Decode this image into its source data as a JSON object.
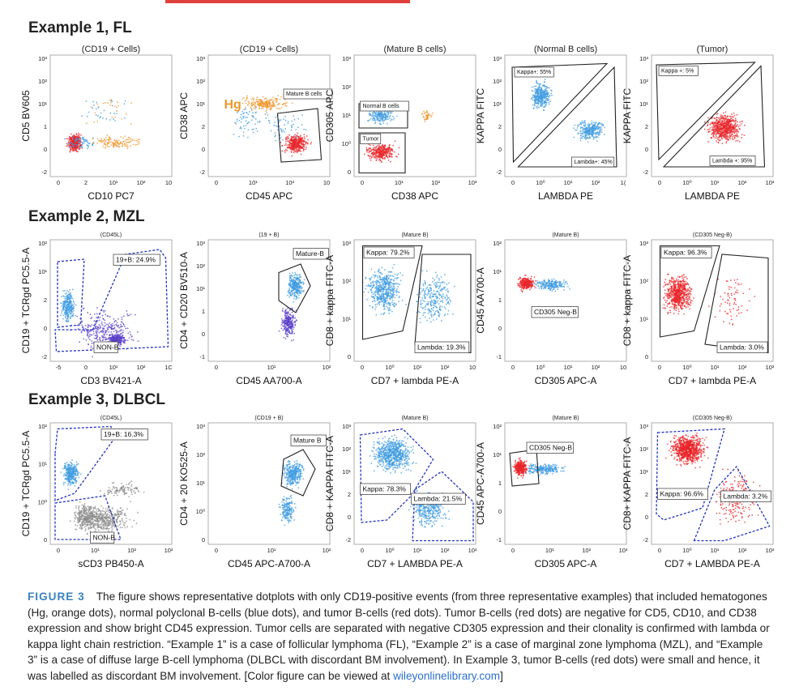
{
  "figure": {
    "examples": [
      {
        "title": "Example 1, FL"
      },
      {
        "title": "Example 2, MZL"
      },
      {
        "title": "Example 3, DLBCL"
      }
    ],
    "caption": {
      "label": "FIGURE 3",
      "text": "The figure shows representative dotplots with only CD19-positive events (from three representative examples) that included hematogones (Hg, orange dots), normal polyclonal B-cells (blue dots), and tumor B-cells (red dots). Tumor B-cells (red dots) are negative for CD5, CD10, and CD38 expression and show bright CD45 expression. Tumor cells are separated with negative CD305 expression and their clonality is confirmed with lambda or kappa light chain restriction. “Example 1” is a case of follicular lymphoma (FL), “Example 2” is a case of marginal zone lymphoma (MZL), and “Example 3” is a case of diffuse large B-cell lymphoma (DLBCL with discordant BM involvement). In Example 3, tumor B-cells (red dots) were small and hence, it was labelled as discordant BM involvement. [Color figure can be viewed at ",
      "link": "wileyonlinelibrary.com",
      "end": "]"
    }
  },
  "colors": {
    "tumor": "#e8252a",
    "normal_b": "#3d9be0",
    "hematogones": "#f0962c",
    "gray": "#8a8a8a",
    "purple": "#5a3fc8",
    "gate_black": "#222222",
    "gate_blue": "#2233bb"
  },
  "chart_data": [
    {
      "type": "scatter",
      "example": 1,
      "title": "(CD19 + Cells)",
      "xlabel": "CD10 PC7",
      "ylabel": "CD5 BV605",
      "xticks": [
        "0",
        "2",
        "10¹",
        "10²",
        "10"
      ],
      "yticks": [
        "10³",
        "10²",
        "10¹",
        "1",
        "0",
        "-2"
      ],
      "series": [
        {
          "name": "tumor",
          "color": "red"
        },
        {
          "name": "normal B",
          "color": "blue"
        },
        {
          "name": "Hg",
          "color": "orange"
        }
      ],
      "gates": []
    },
    {
      "type": "scatter",
      "example": 1,
      "title": "(CD19 + Cells)",
      "xlabel": "CD45 APC",
      "ylabel": "CD38 APC",
      "xticks": [
        "0",
        "10¹",
        "10²",
        "10"
      ],
      "yticks": [
        "10³",
        "10²",
        "10¹",
        "2",
        "0",
        "-2"
      ],
      "annotations": [
        "Hg"
      ],
      "gates": [
        {
          "label": "Mature B cells"
        }
      ]
    },
    {
      "type": "scatter",
      "example": 1,
      "title": "(Mature B cells)",
      "xlabel": "CD38 APC",
      "ylabel": "CD305 APC",
      "xticks": [
        "0",
        "10¹",
        "10²",
        "10³"
      ],
      "yticks": [
        "10³",
        "10²",
        "10¹",
        "10⁰",
        "0"
      ],
      "gates": [
        {
          "label": "Normal B cells"
        },
        {
          "label": "Tumor"
        }
      ]
    },
    {
      "type": "scatter",
      "example": 1,
      "title": "(Normal B cells)",
      "xlabel": "LAMBDA PE",
      "ylabel": "KAPPA FITC",
      "xticks": [
        "0",
        "10⁰",
        "10¹",
        "10²",
        "1("
      ],
      "yticks": [
        "10³",
        "10²",
        "10¹",
        "2",
        "0",
        "-2"
      ],
      "gates": [
        {
          "label": "Kappa+: 55%",
          "value": 55
        },
        {
          "label": "Lambda+: 45%",
          "value": 45
        }
      ]
    },
    {
      "type": "scatter",
      "example": 1,
      "title": "(Tumor)",
      "xlabel": "LAMBDA PE",
      "ylabel": "KAPPA FITC",
      "xticks": [
        "0",
        "10⁰",
        "10¹",
        "10²",
        "10³"
      ],
      "yticks": [
        "10³",
        "10²",
        "10¹",
        "2",
        "0",
        "-2"
      ],
      "gates": [
        {
          "label": "Kappa +: 5%",
          "value": 5
        },
        {
          "label": "Lambda +: 95%",
          "value": 95
        }
      ]
    },
    {
      "type": "scatter",
      "example": 2,
      "title": "(CD45L)",
      "xlabel": "CD3 BV421-A",
      "ylabel": "CD19 + TCRgd PC5.5-A",
      "xticks": [
        "-5",
        "0",
        "10¹",
        "10²",
        "1C"
      ],
      "yticks": [
        "10²",
        "10¹",
        "2",
        "0",
        "-2"
      ],
      "gates": [
        {
          "label": "19+B: 24.9%",
          "value": 24.9
        },
        {
          "label": "NON-B"
        }
      ]
    },
    {
      "type": "scatter",
      "example": 2,
      "title": "(19 + B)",
      "xlabel": "CD45 AA700-A",
      "ylabel": "CD4 + CD20 BV510-A",
      "xticks": [
        "0",
        "10¹",
        "10²"
      ],
      "yticks": [
        "10³",
        "10²",
        "10¹",
        "1",
        "0",
        "-1"
      ],
      "gates": [
        {
          "label": "Mature-B"
        }
      ]
    },
    {
      "type": "scatter",
      "example": 2,
      "title": "(Mature B)",
      "xlabel": "CD7 + lambda PE-A",
      "ylabel": "CD8 + kappa FITC-A",
      "xticks": [
        "0",
        "10⁰",
        "10¹",
        "10²",
        "10"
      ],
      "yticks": [
        "10³",
        "10²",
        "10¹",
        "0"
      ],
      "gates": [
        {
          "label": "Kappa: 79.2%",
          "value": 79.2
        },
        {
          "label": "Lambda: 19.3%",
          "value": 19.3
        }
      ]
    },
    {
      "type": "scatter",
      "example": 2,
      "title": "(Mature B)",
      "xlabel": "CD305 APC-A",
      "ylabel": "CD45 AA700-A",
      "xticks": [
        "0",
        "10⁰",
        "10¹",
        "10²",
        "10"
      ],
      "yticks": [
        "10²",
        "10¹",
        "1",
        "0",
        "-1"
      ],
      "gates": [
        {
          "label": "CD305 Neg-B"
        }
      ]
    },
    {
      "type": "scatter",
      "example": 2,
      "title": "(CD305 Neg-B)",
      "xlabel": "CD7 + lambda PE-A",
      "ylabel": "CD8 + kappa FITC-A",
      "xticks": [
        "0",
        "10⁰",
        "10¹",
        "10²",
        "10³"
      ],
      "yticks": [
        "10³",
        "10²",
        "10¹",
        "0"
      ],
      "gates": [
        {
          "label": "Kappa: 96.3%",
          "value": 96.3
        },
        {
          "label": "Lambda: 3.0%",
          "value": 3.0
        }
      ]
    },
    {
      "type": "scatter",
      "example": 3,
      "title": "(CD45L)",
      "xlabel": "sCD3 PB450-A",
      "ylabel": "CD19 + TCRgd PC5.5-A",
      "xticks": [
        "0",
        "10¹",
        "10²",
        "10³"
      ],
      "yticks": [
        "10²",
        "10¹",
        "10⁰",
        "0"
      ],
      "gates": [
        {
          "label": "19+B: 16.3%",
          "value": 16.3
        },
        {
          "label": "NON-B"
        }
      ]
    },
    {
      "type": "scatter",
      "example": 3,
      "title": "(CD19 + B)",
      "xlabel": "CD45 APC-A700-A",
      "ylabel": "CD4 + 20 KO525-A",
      "xticks": [
        "0",
        "10¹",
        "10²"
      ],
      "yticks": [
        "10³",
        "10²",
        "10¹",
        "10⁰",
        "0"
      ],
      "gates": [
        {
          "label": "Mature B"
        }
      ]
    },
    {
      "type": "scatter",
      "example": 3,
      "title": "(Mature B)",
      "xlabel": "CD7 + LAMBDA PE-A",
      "ylabel": "CD8 + KAPPA FITC-A",
      "xticks": [
        "0",
        "10⁰",
        "10¹",
        "10²",
        "10³"
      ],
      "yticks": [
        "10³",
        "10²",
        "10¹",
        "2",
        "0",
        "-2"
      ],
      "gates": [
        {
          "label": "Kappa: 78.3%",
          "value": 78.3
        },
        {
          "label": "Lambda: 21.5%",
          "value": 21.5
        }
      ]
    },
    {
      "type": "scatter",
      "example": 3,
      "title": "(Mature B)",
      "xlabel": "CD305 APC-A",
      "ylabel": "CD45 APC-A700-A",
      "xticks": [
        "0",
        "10¹",
        "10²",
        "10³"
      ],
      "yticks": [
        "10²",
        "10¹",
        "1",
        "0",
        "-1"
      ],
      "gates": [
        {
          "label": "CD305 Neg-B"
        }
      ]
    },
    {
      "type": "scatter",
      "example": 3,
      "title": "(CD305 Neg-B)",
      "xlabel": "CD7 + LAMBDA PE-A",
      "ylabel": "CD8+ KAPPA FITC-A",
      "xticks": [
        "0",
        "10⁰",
        "10¹",
        "10²",
        "10³"
      ],
      "yticks": [
        "10³",
        "10²",
        "10¹",
        "2",
        "0",
        "-2"
      ],
      "gates": [
        {
          "label": "Kappa: 96.6%",
          "value": 96.6
        },
        {
          "label": "Lambda: 3.2%",
          "value": 3.2
        }
      ]
    }
  ]
}
